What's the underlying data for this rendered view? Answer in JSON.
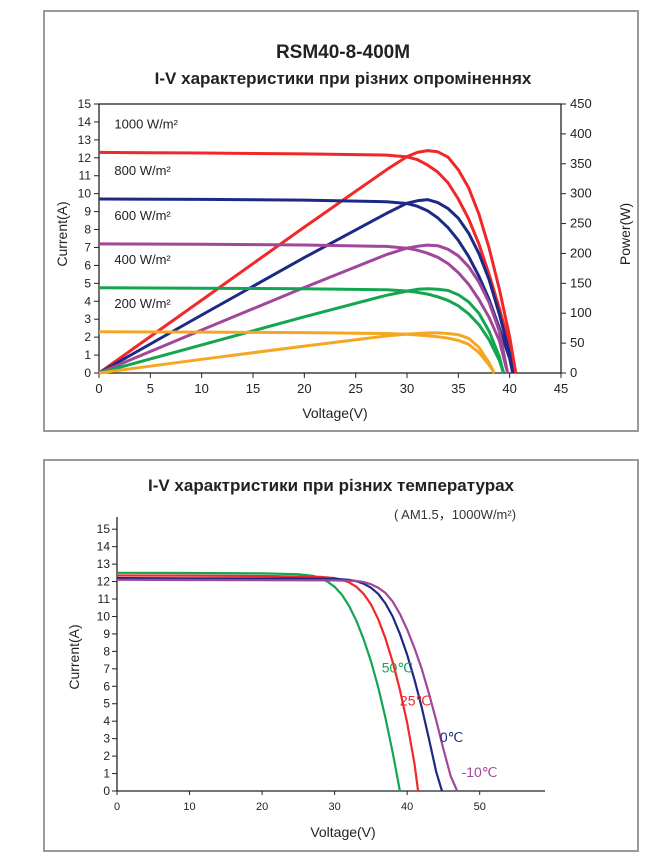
{
  "chart_data": [
    {
      "type": "line",
      "title": "RSM40-8-400M",
      "subtitle": "I-V характеристики при різних опроміненнях",
      "xlabel": "Voltage(V)",
      "ylabel": "Current(A)",
      "y2label": "Power(W)",
      "xlim": [
        0,
        45
      ],
      "ylim": [
        0,
        15
      ],
      "y2lim": [
        0,
        450
      ],
      "xticks": [
        0,
        5,
        10,
        15,
        20,
        25,
        30,
        35,
        40,
        45
      ],
      "yticks": [
        0,
        1,
        2,
        3,
        4,
        5,
        6,
        7,
        8,
        9,
        10,
        11,
        12,
        13,
        14,
        15
      ],
      "y2ticks": [
        0,
        50,
        100,
        150,
        200,
        250,
        300,
        350,
        400,
        450
      ],
      "grid": false,
      "series": [
        {
          "name": "1000 W/m²",
          "color": "#f0282a",
          "iv": [
            [
              0,
              12.3
            ],
            [
              10,
              12.27
            ],
            [
              20,
              12.22
            ],
            [
              28,
              12.15
            ],
            [
              30,
              12.05
            ],
            [
              31,
              11.9
            ],
            [
              32,
              11.6
            ],
            [
              33,
              11.2
            ],
            [
              34,
              10.6
            ],
            [
              35,
              9.7
            ],
            [
              36,
              8.6
            ],
            [
              37,
              7.2
            ],
            [
              38,
              5.5
            ],
            [
              39,
              3.6
            ],
            [
              40,
              1.5
            ],
            [
              40.6,
              0
            ]
          ],
          "pv": [
            [
              0,
              0
            ],
            [
              10,
              122
            ],
            [
              20,
              244
            ],
            [
              28,
              340
            ],
            [
              30,
              362
            ],
            [
              31,
              369
            ],
            [
              32,
              372
            ],
            [
              33,
              370
            ],
            [
              34,
              361
            ],
            [
              35,
              340
            ],
            [
              36,
              310
            ],
            [
              37,
              266
            ],
            [
              38,
              209
            ],
            [
              39,
              140
            ],
            [
              40,
              60
            ],
            [
              40.6,
              0
            ]
          ]
        },
        {
          "name": "800 W/m²",
          "color": "#1c2a86",
          "iv": [
            [
              0,
              9.7
            ],
            [
              10,
              9.68
            ],
            [
              20,
              9.64
            ],
            [
              28,
              9.55
            ],
            [
              30,
              9.45
            ],
            [
              31,
              9.3
            ],
            [
              32,
              9.05
            ],
            [
              33,
              8.65
            ],
            [
              34,
              8.1
            ],
            [
              35,
              7.4
            ],
            [
              36,
              6.5
            ],
            [
              37,
              5.4
            ],
            [
              38,
              4.1
            ],
            [
              39,
              2.5
            ],
            [
              40,
              0.8
            ],
            [
              40.3,
              0
            ]
          ],
          "pv": [
            [
              0,
              0
            ],
            [
              10,
              97
            ],
            [
              20,
              193
            ],
            [
              28,
              267
            ],
            [
              30,
              284
            ],
            [
              31,
              288
            ],
            [
              32,
              290
            ],
            [
              33,
              285
            ],
            [
              34,
              275
            ],
            [
              35,
              259
            ],
            [
              36,
              234
            ],
            [
              37,
              200
            ],
            [
              38,
              156
            ],
            [
              39,
              98
            ],
            [
              40,
              32
            ],
            [
              40.3,
              0
            ]
          ]
        },
        {
          "name": "600 W/m²",
          "color": "#a0479b",
          "iv": [
            [
              0,
              7.2
            ],
            [
              10,
              7.18
            ],
            [
              20,
              7.14
            ],
            [
              28,
              7.06
            ],
            [
              30,
              6.96
            ],
            [
              31,
              6.85
            ],
            [
              32,
              6.68
            ],
            [
              33,
              6.45
            ],
            [
              34,
              6.1
            ],
            [
              35,
              5.6
            ],
            [
              36,
              4.95
            ],
            [
              37,
              4.1
            ],
            [
              38,
              3.1
            ],
            [
              39,
              1.8
            ],
            [
              39.8,
              0
            ]
          ],
          "pv": [
            [
              0,
              0
            ],
            [
              10,
              72
            ],
            [
              20,
              143
            ],
            [
              28,
              198
            ],
            [
              30,
              209
            ],
            [
              31,
              212
            ],
            [
              32,
              214
            ],
            [
              33,
              213
            ],
            [
              34,
              207
            ],
            [
              35,
              196
            ],
            [
              36,
              178
            ],
            [
              37,
              152
            ],
            [
              38,
              118
            ],
            [
              39,
              70
            ],
            [
              39.8,
              0
            ]
          ]
        },
        {
          "name": "400 W/m²",
          "color": "#12a651",
          "iv": [
            [
              0,
              4.75
            ],
            [
              10,
              4.73
            ],
            [
              20,
              4.7
            ],
            [
              28,
              4.64
            ],
            [
              30,
              4.57
            ],
            [
              31,
              4.5
            ],
            [
              32,
              4.4
            ],
            [
              33,
              4.25
            ],
            [
              34,
              4.05
            ],
            [
              35,
              3.75
            ],
            [
              36,
              3.3
            ],
            [
              37,
              2.7
            ],
            [
              38,
              1.85
            ],
            [
              39,
              0.7
            ],
            [
              39.4,
              0
            ]
          ],
          "pv": [
            [
              0,
              0
            ],
            [
              10,
              47
            ],
            [
              20,
              94
            ],
            [
              28,
              130
            ],
            [
              30,
              137
            ],
            [
              31,
              140
            ],
            [
              32,
              141
            ],
            [
              33,
              140
            ],
            [
              34,
              138
            ],
            [
              35,
              131
            ],
            [
              36,
              119
            ],
            [
              37,
              100
            ],
            [
              38,
              70
            ],
            [
              39,
              27
            ],
            [
              39.4,
              0
            ]
          ]
        },
        {
          "name": "200 W/m²",
          "color": "#f5a623",
          "iv": [
            [
              0,
              2.3
            ],
            [
              10,
              2.28
            ],
            [
              20,
              2.25
            ],
            [
              28,
              2.2
            ],
            [
              30,
              2.16
            ],
            [
              31,
              2.12
            ],
            [
              32,
              2.08
            ],
            [
              33,
              2.02
            ],
            [
              34,
              1.94
            ],
            [
              35,
              1.82
            ],
            [
              36,
              1.6
            ],
            [
              37,
              1.15
            ],
            [
              38,
              0.45
            ],
            [
              38.5,
              0
            ]
          ],
          "pv": [
            [
              0,
              0
            ],
            [
              10,
              23
            ],
            [
              20,
              45
            ],
            [
              28,
              62
            ],
            [
              30,
              65
            ],
            [
              31,
              66
            ],
            [
              32,
              67
            ],
            [
              33,
              67
            ],
            [
              34,
              66
            ],
            [
              35,
              64
            ],
            [
              36,
              58
            ],
            [
              37,
              43
            ],
            [
              38,
              17
            ],
            [
              38.5,
              0
            ]
          ]
        }
      ]
    },
    {
      "type": "line",
      "title": "I-V характристики при різних температурах",
      "subtitle": "( AM1.5，1000W/m²)",
      "xlabel": "Voltage(V)",
      "ylabel": "Current(A)",
      "xlim": [
        0,
        59
      ],
      "ylim": [
        0,
        15.7
      ],
      "xticks": [
        0,
        10,
        20,
        30,
        40,
        50
      ],
      "yticks": [
        0,
        1,
        2,
        3,
        4,
        5,
        6,
        7,
        8,
        9,
        10,
        11,
        12,
        13,
        14,
        15
      ],
      "grid": false,
      "series": [
        {
          "name": "50℃",
          "color": "#12a651",
          "iv": [
            [
              0,
              12.5
            ],
            [
              10,
              12.49
            ],
            [
              20,
              12.47
            ],
            [
              25,
              12.42
            ],
            [
              27,
              12.33
            ],
            [
              28,
              12.2
            ],
            [
              29,
              12.0
            ],
            [
              30,
              11.7
            ],
            [
              31,
              11.25
            ],
            [
              32,
              10.6
            ],
            [
              33,
              9.75
            ],
            [
              34,
              8.7
            ],
            [
              35,
              7.45
            ],
            [
              36,
              5.95
            ],
            [
              37,
              4.2
            ],
            [
              38,
              2.2
            ],
            [
              39,
              0
            ]
          ]
        },
        {
          "name": "25℃",
          "color": "#f0282a",
          "iv": [
            [
              0,
              12.35
            ],
            [
              10,
              12.34
            ],
            [
              20,
              12.32
            ],
            [
              28,
              12.27
            ],
            [
              30,
              12.2
            ],
            [
              31,
              12.1
            ],
            [
              32,
              11.95
            ],
            [
              33,
              11.7
            ],
            [
              34,
              11.3
            ],
            [
              35,
              10.7
            ],
            [
              36,
              9.85
            ],
            [
              37,
              8.75
            ],
            [
              38,
              7.4
            ],
            [
              39,
              5.8
            ],
            [
              40,
              3.9
            ],
            [
              41,
              1.6
            ],
            [
              41.5,
              0
            ]
          ]
        },
        {
          "name": "0℃",
          "color": "#1c2a86",
          "iv": [
            [
              0,
              12.2
            ],
            [
              10,
              12.19
            ],
            [
              20,
              12.18
            ],
            [
              30,
              12.16
            ],
            [
              32,
              12.1
            ],
            [
              33,
              12.02
            ],
            [
              34,
              11.88
            ],
            [
              35,
              11.65
            ],
            [
              36,
              11.3
            ],
            [
              37,
              10.75
            ],
            [
              38,
              10.0
            ],
            [
              39,
              9.0
            ],
            [
              40,
              7.8
            ],
            [
              41,
              6.4
            ],
            [
              42,
              4.8
            ],
            [
              43,
              3.0
            ],
            [
              44,
              1.1
            ],
            [
              44.8,
              0
            ]
          ]
        },
        {
          "name": "-10℃",
          "color": "#a0479b",
          "iv": [
            [
              0,
              12.1
            ],
            [
              10,
              12.09
            ],
            [
              20,
              12.08
            ],
            [
              30,
              12.07
            ],
            [
              33,
              12.03
            ],
            [
              34,
              11.97
            ],
            [
              35,
              11.85
            ],
            [
              36,
              11.65
            ],
            [
              37,
              11.35
            ],
            [
              38,
              10.85
            ],
            [
              39,
              10.15
            ],
            [
              40,
              9.25
            ],
            [
              41,
              8.2
            ],
            [
              42,
              7.0
            ],
            [
              43,
              5.6
            ],
            [
              44,
              4.05
            ],
            [
              45,
              2.4
            ],
            [
              46,
              0.85
            ],
            [
              46.9,
              0
            ]
          ]
        }
      ]
    }
  ]
}
